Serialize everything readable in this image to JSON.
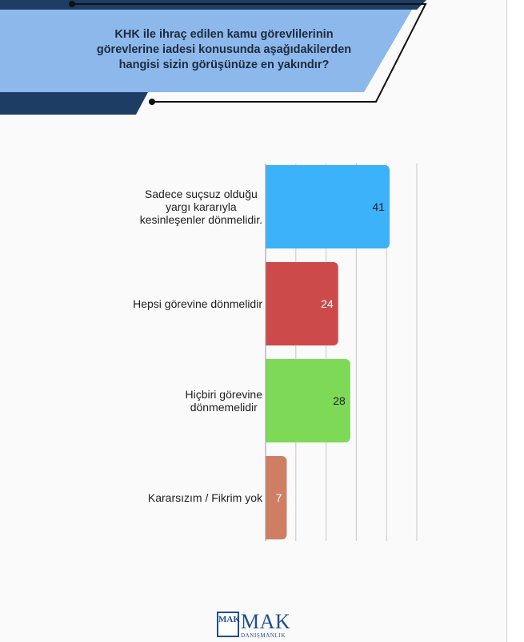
{
  "header": {
    "question_lines": [
      "KHK ile ihraç edilen kamu görevlilerinin",
      "görevlerine iadesi konusunda aşağıdakilerden",
      "hangisi sizin görüşünüze en yakındır?"
    ]
  },
  "colors": {
    "navy": "#1d3d64",
    "light_blue_banner": "#8cb8ec",
    "bar_blue": "#3bb2f9",
    "bar_red": "#cd4a4b",
    "bar_green": "#7ed957",
    "bar_salmon": "#ce7f63"
  },
  "chart_data": {
    "type": "bar",
    "orientation": "horizontal",
    "categories": [
      "Sadece suçsuz olduğu yargı kararıyla kesinleşenler dönmelidir.",
      "Hepsi görevine dönmelidir",
      "Hiçbiri görevine dönmemelidir",
      "Kararsızım / Fikrim yok"
    ],
    "category_lines": [
      [
        "Sadece suçsuz olduğu",
        "yargı kararıyla",
        "kesinleşenler dönmelidir."
      ],
      [
        "Hepsi görevine dönmelidir"
      ],
      [
        "Hiçbiri görevine",
        "dönmemelidir"
      ],
      [
        "Kararsızım / Fikrim yok"
      ]
    ],
    "values": [
      41,
      24,
      28,
      7
    ],
    "value_labels": [
      "41",
      "24",
      "28",
      "7"
    ],
    "bar_colors": [
      "#3bb2f9",
      "#cd4a4b",
      "#7ed957",
      "#ce7f63"
    ],
    "label_colors": [
      "#1e1e1e",
      "#ffffff",
      "#1e1e1e",
      "#ffffff"
    ],
    "xlim": [
      0,
      50
    ],
    "grid": true,
    "legend": "none"
  },
  "logo": {
    "mark": "MAK",
    "name": "MAK",
    "subtitle": "DANIŞMANLIK"
  }
}
